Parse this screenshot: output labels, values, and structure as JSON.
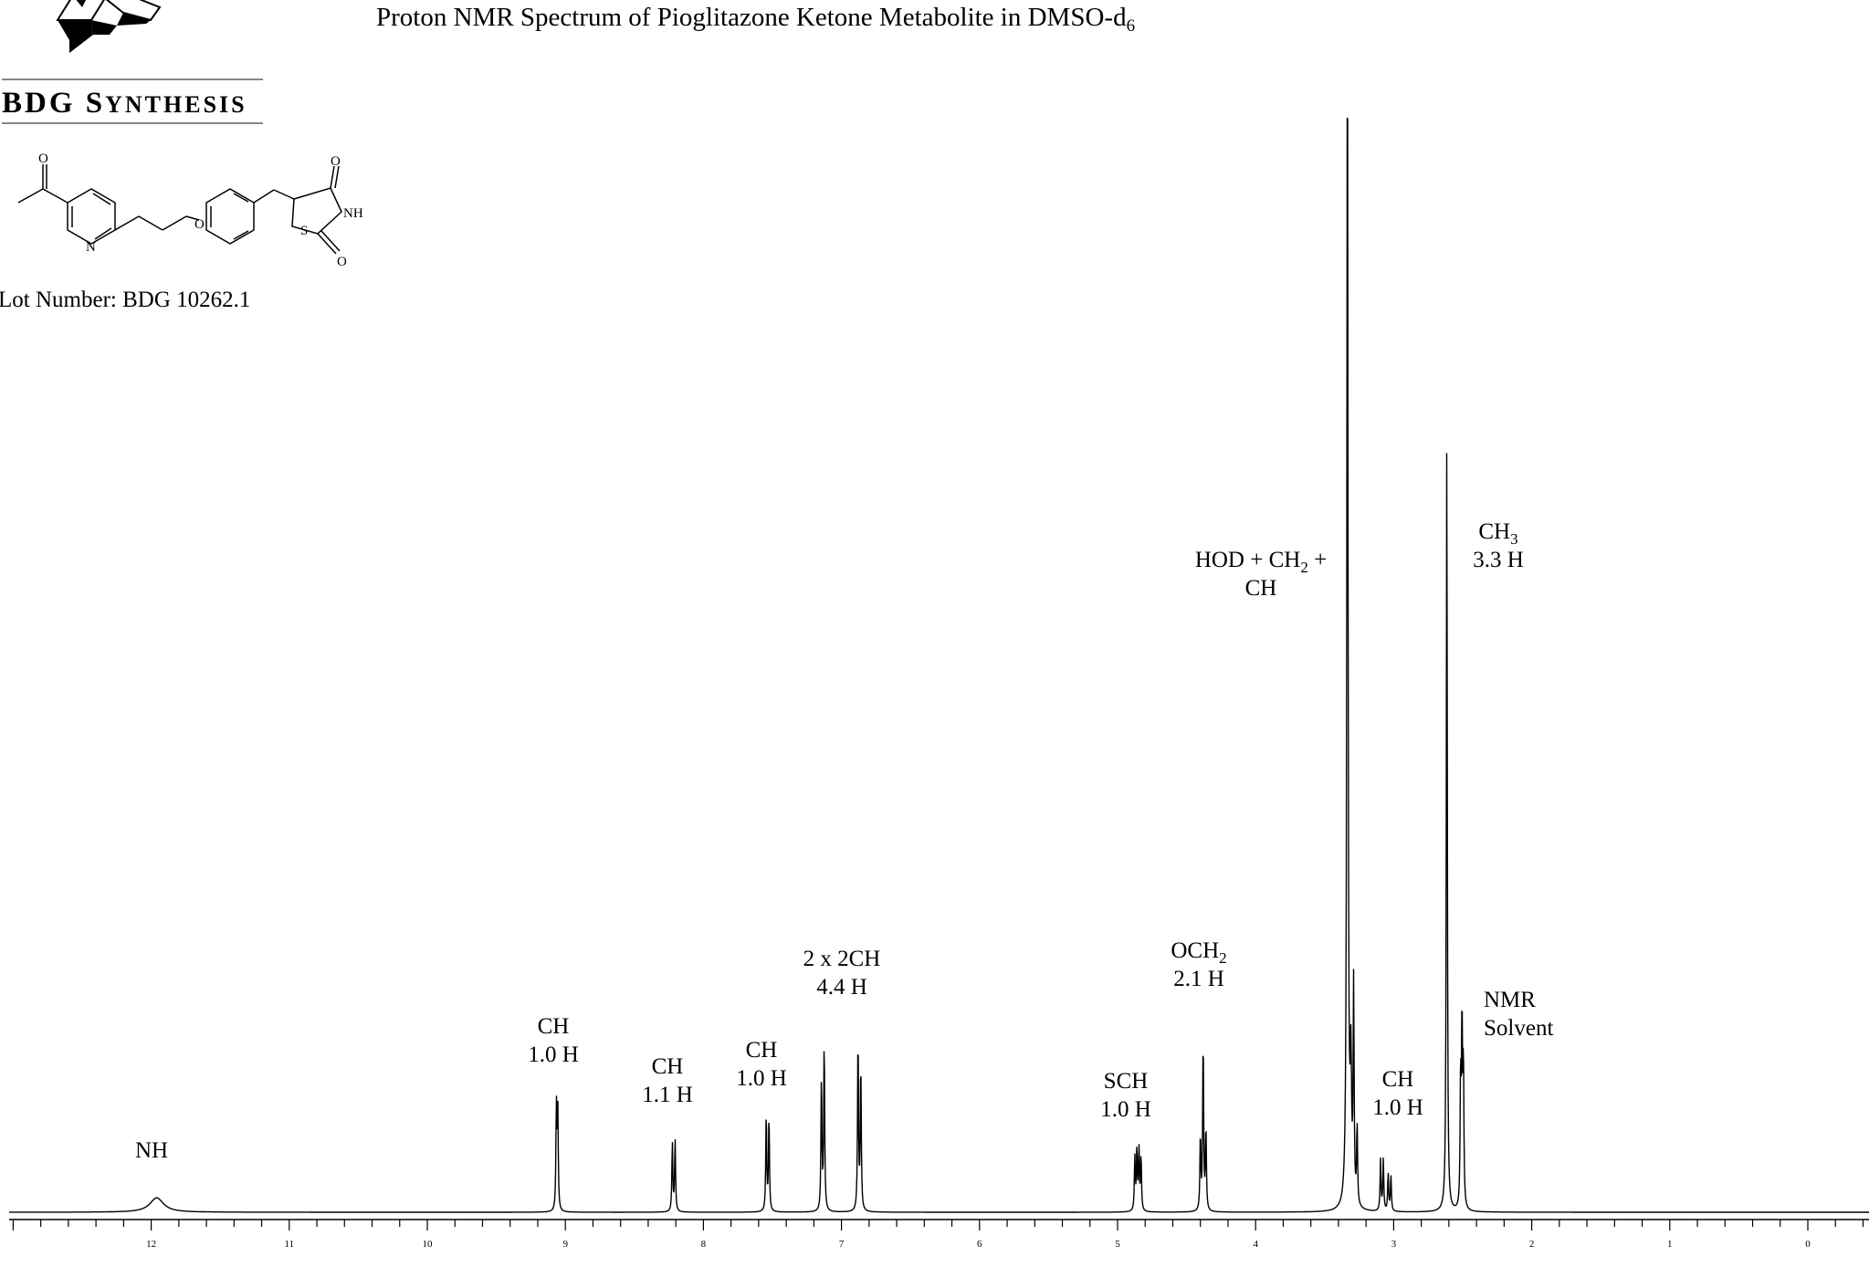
{
  "company": {
    "name_main": "BDG S",
    "name_caps": "YNTHESIS"
  },
  "title": {
    "main": "Proton NMR Spectrum of Pioglitazone Ketone Metabolite in DMSO-d",
    "subscript": "6"
  },
  "lot": "Lot Number: BDG 10262.1",
  "structure_atoms": [
    "O",
    "N",
    "O",
    "S",
    "NH",
    "O",
    "O"
  ],
  "chart_data": {
    "type": "line",
    "title": "Proton NMR Spectrum of Pioglitazone Ketone Metabolite in DMSO-d6",
    "xlabel": "",
    "ylabel": "",
    "xlim": [
      13.0,
      -0.45
    ],
    "x_reversed": true,
    "x_ticks": [
      "12",
      "11",
      "10",
      "9",
      "8",
      "7",
      "6",
      "5",
      "4",
      "3",
      "2",
      "1",
      "0"
    ],
    "grid": false,
    "peaks": [
      {
        "ppm": 11.96,
        "height": 0.012,
        "width": 0.06,
        "annotation": "NH"
      },
      {
        "ppm": 9.065,
        "height": 0.087,
        "width": 0.004,
        "annotation": "CH 1.0 H"
      },
      {
        "ppm": 9.055,
        "height": 0.085,
        "width": 0.004
      },
      {
        "ppm": 8.225,
        "height": 0.058,
        "width": 0.004,
        "annotation": "CH 1.1 H"
      },
      {
        "ppm": 8.205,
        "height": 0.06,
        "width": 0.004
      },
      {
        "ppm": 7.545,
        "height": 0.082,
        "width": 0.004,
        "annotation": "CH 1.0 H"
      },
      {
        "ppm": 7.525,
        "height": 0.08,
        "width": 0.004
      },
      {
        "ppm": 7.145,
        "height": 0.112,
        "width": 0.004,
        "annotation": "2 x 2CH 4.4 H"
      },
      {
        "ppm": 7.125,
        "height": 0.143,
        "width": 0.004
      },
      {
        "ppm": 6.88,
        "height": 0.147,
        "width": 0.004
      },
      {
        "ppm": 6.86,
        "height": 0.124,
        "width": 0.004
      },
      {
        "ppm": 4.875,
        "height": 0.045,
        "width": 0.004,
        "annotation": "SCH 1.0 H"
      },
      {
        "ppm": 4.86,
        "height": 0.051,
        "width": 0.004
      },
      {
        "ppm": 4.845,
        "height": 0.05,
        "width": 0.004
      },
      {
        "ppm": 4.83,
        "height": 0.046,
        "width": 0.004
      },
      {
        "ppm": 4.4,
        "height": 0.063,
        "width": 0.004,
        "annotation": "OCH2 2.1 H"
      },
      {
        "ppm": 4.38,
        "height": 0.145,
        "width": 0.004
      },
      {
        "ppm": 4.36,
        "height": 0.07,
        "width": 0.004
      },
      {
        "ppm": 3.335,
        "height": 1.0,
        "width": 0.005,
        "annotation": "HOD + CH2 + CH"
      },
      {
        "ppm": 3.31,
        "height": 0.11,
        "width": 0.006
      },
      {
        "ppm": 3.29,
        "height": 0.18,
        "width": 0.004
      },
      {
        "ppm": 3.265,
        "height": 0.068,
        "width": 0.004
      },
      {
        "ppm": 3.095,
        "height": 0.043,
        "width": 0.004,
        "annotation": "CH 1.0 H"
      },
      {
        "ppm": 3.075,
        "height": 0.043,
        "width": 0.004
      },
      {
        "ppm": 3.04,
        "height": 0.032,
        "width": 0.004
      },
      {
        "ppm": 3.02,
        "height": 0.03,
        "width": 0.004
      },
      {
        "ppm": 2.615,
        "height": 0.652,
        "width": 0.004,
        "annotation": "CH3 3.3 H"
      },
      {
        "ppm": 2.515,
        "height": 0.11,
        "width": 0.004,
        "annotation": "NMR Solvent"
      },
      {
        "ppm": 2.505,
        "height": 0.155,
        "width": 0.004
      },
      {
        "ppm": 2.495,
        "height": 0.12,
        "width": 0.004
      }
    ],
    "annotations": [
      {
        "lines": [
          "NH"
        ],
        "ppm": 11.96
      },
      {
        "lines": [
          "CH",
          "1.0 H"
        ],
        "ppm": 9.06
      },
      {
        "lines": [
          "CH",
          "1.1 H"
        ],
        "ppm": 8.22
      },
      {
        "lines": [
          "CH",
          "1.0 H"
        ],
        "ppm": 7.55
      },
      {
        "lines": [
          "2 x 2CH",
          "4.4 H"
        ],
        "ppm": 7.0
      },
      {
        "lines": [
          "SCH",
          "1.0 H"
        ],
        "ppm": 4.86
      },
      {
        "lines": [
          "OCH2",
          "2.1 H"
        ],
        "ppm": 4.4
      },
      {
        "lines": [
          "HOD + CH2 +",
          "CH"
        ],
        "ppm": 4.05
      },
      {
        "lines": [
          "CH",
          "1.0 H"
        ],
        "ppm": 3.05
      },
      {
        "lines": [
          "CH3",
          "3.3 H"
        ],
        "ppm": 2.32
      },
      {
        "lines": [
          "NMR",
          "Solvent"
        ],
        "ppm": 2.15
      }
    ]
  }
}
